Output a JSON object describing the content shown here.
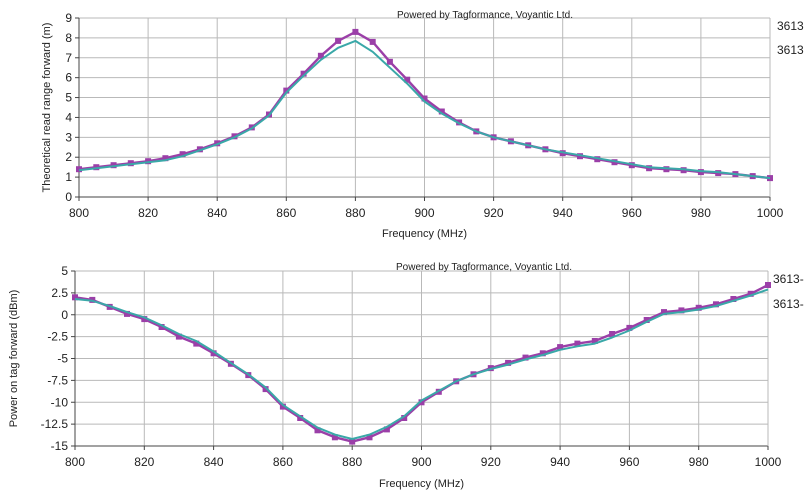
{
  "chart_data": [
    {
      "type": "line",
      "title": "",
      "annotation": "Powered by Tagformance, Voyantic Ltd.",
      "xlabel": "Frequency (MHz)",
      "ylabel": "Theoretical read range forward (m)",
      "xlim": [
        800,
        1000
      ],
      "ylim": [
        0,
        9
      ],
      "xticks": [
        "800",
        "820",
        "840",
        "860",
        "880",
        "900",
        "920",
        "940",
        "960",
        "980",
        "1000"
      ],
      "yticks": [
        "0",
        "1",
        "2",
        "3",
        "4",
        "5",
        "6",
        "7",
        "8",
        "9"
      ],
      "grid": true,
      "legend_position": "right",
      "x": [
        800,
        805,
        810,
        815,
        820,
        825,
        830,
        835,
        840,
        845,
        850,
        855,
        860,
        865,
        870,
        875,
        880,
        885,
        890,
        895,
        900,
        905,
        910,
        915,
        920,
        925,
        930,
        935,
        940,
        945,
        950,
        955,
        960,
        965,
        970,
        975,
        980,
        985,
        990,
        995,
        1000
      ],
      "series": [
        {
          "name": "3613",
          "color": "#9b3fa8",
          "values": [
            1.4,
            1.5,
            1.6,
            1.7,
            1.8,
            1.95,
            2.15,
            2.4,
            2.7,
            3.05,
            3.5,
            4.15,
            5.35,
            6.2,
            7.1,
            7.85,
            8.3,
            7.8,
            6.8,
            5.9,
            4.95,
            4.3,
            3.75,
            3.3,
            3.0,
            2.8,
            2.6,
            2.4,
            2.2,
            2.05,
            1.9,
            1.75,
            1.6,
            1.45,
            1.4,
            1.35,
            1.25,
            1.2,
            1.15,
            1.05,
            0.95
          ]
        },
        {
          "name": "3613",
          "color": "#3aa8a8",
          "values": [
            1.35,
            1.45,
            1.55,
            1.65,
            1.75,
            1.85,
            2.05,
            2.35,
            2.65,
            3.0,
            3.45,
            4.1,
            5.25,
            6.1,
            6.9,
            7.5,
            7.85,
            7.3,
            6.5,
            5.7,
            4.8,
            4.2,
            3.7,
            3.3,
            3.0,
            2.8,
            2.6,
            2.4,
            2.25,
            2.1,
            1.95,
            1.8,
            1.65,
            1.5,
            1.45,
            1.4,
            1.3,
            1.25,
            1.15,
            1.05,
            0.95
          ]
        }
      ]
    },
    {
      "type": "line",
      "title": "",
      "annotation": "Powered by Tagformance, Voyantic Ltd.",
      "xlabel": "Frequency (MHz)",
      "ylabel": "Power on tag forward (dBm)",
      "xlim": [
        800,
        1000
      ],
      "ylim": [
        -15,
        5
      ],
      "xticks": [
        "800",
        "820",
        "840",
        "860",
        "880",
        "900",
        "920",
        "940",
        "960",
        "980",
        "1000"
      ],
      "yticks": [
        "5",
        "2.5",
        "0",
        "-2.5",
        "-5",
        "-7.5",
        "-10",
        "-12.5",
        "-15"
      ],
      "grid": true,
      "legend_position": "right",
      "x": [
        800,
        805,
        810,
        815,
        820,
        825,
        830,
        835,
        840,
        845,
        850,
        855,
        860,
        865,
        870,
        875,
        880,
        885,
        890,
        895,
        900,
        905,
        910,
        915,
        920,
        925,
        930,
        935,
        940,
        945,
        950,
        955,
        960,
        965,
        970,
        975,
        980,
        985,
        990,
        995,
        1000
      ],
      "series": [
        {
          "name": "3613-",
          "color": "#9b3fa8",
          "values": [
            2.0,
            1.7,
            0.9,
            0.1,
            -0.5,
            -1.4,
            -2.5,
            -3.3,
            -4.4,
            -5.6,
            -6.9,
            -8.5,
            -10.5,
            -11.8,
            -13.2,
            -14.0,
            -14.5,
            -14.0,
            -13.1,
            -11.8,
            -10.0,
            -8.8,
            -7.6,
            -6.8,
            -6.1,
            -5.5,
            -4.9,
            -4.4,
            -3.7,
            -3.3,
            -3.0,
            -2.2,
            -1.5,
            -0.6,
            0.3,
            0.5,
            0.8,
            1.2,
            1.8,
            2.4,
            3.4
          ]
        },
        {
          "name": "3613-",
          "color": "#3aa8a8",
          "values": [
            1.8,
            1.6,
            1.0,
            0.3,
            -0.3,
            -1.2,
            -2.2,
            -3.0,
            -4.2,
            -5.5,
            -6.8,
            -8.3,
            -10.3,
            -11.6,
            -12.9,
            -13.7,
            -14.2,
            -13.7,
            -12.8,
            -11.6,
            -9.8,
            -8.7,
            -7.6,
            -6.8,
            -6.2,
            -5.7,
            -5.1,
            -4.6,
            -4.0,
            -3.6,
            -3.3,
            -2.6,
            -1.8,
            -0.8,
            0.1,
            0.3,
            0.6,
            1.0,
            1.6,
            2.2,
            2.9
          ]
        }
      ]
    }
  ]
}
